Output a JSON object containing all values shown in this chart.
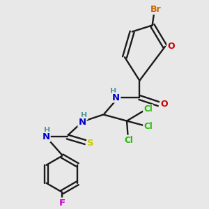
{
  "bg_color": "#e8e8e8",
  "bond_color": "#1a1a1a",
  "atom_colors": {
    "Br": "#cc6600",
    "O_furan": "#cc0000",
    "O_carbonyl": "#cc0000",
    "N": "#0000cc",
    "H": "#559999",
    "Cl": "#22bb00",
    "S": "#cccc00",
    "F": "#cc00cc",
    "C": "#1a1a1a"
  }
}
